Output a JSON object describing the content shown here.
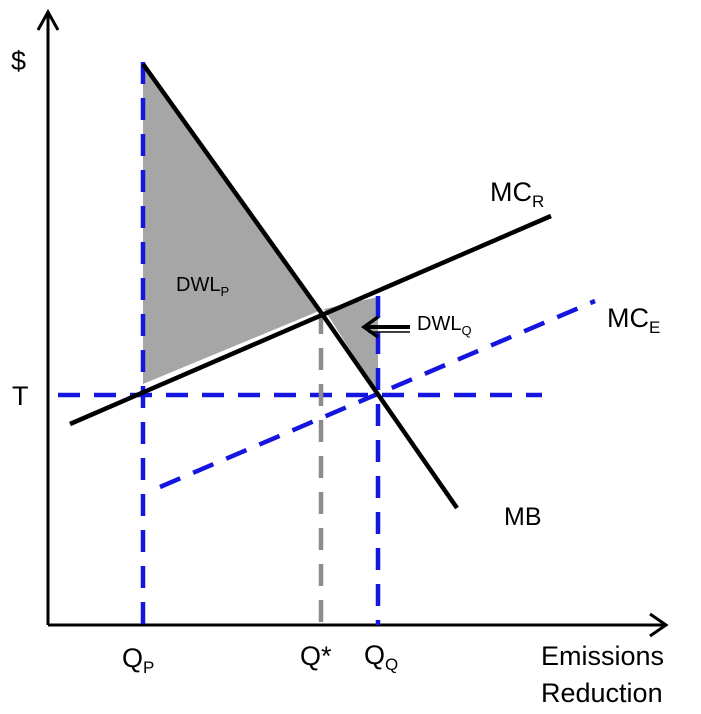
{
  "axes": {
    "y_label": "$",
    "x_label_line1": "Emissions",
    "x_label_line2": "Reduction"
  },
  "labels": {
    "tax": "T",
    "q_p_main": "Q",
    "q_p_sub": "P",
    "q_star": "Q*",
    "q_q_main": "Q",
    "q_q_sub": "Q",
    "mc_r_main": "MC",
    "mc_r_sub": "R",
    "mc_e_main": "MC",
    "mc_e_sub": "E",
    "mb": "MB",
    "dwl_p_main": "DWL",
    "dwl_p_sub": "P",
    "dwl_q_main": "DWL",
    "dwl_q_sub": "Q"
  },
  "colors": {
    "policy_lines": "#1515e0",
    "optimum_line": "#8c8c8c",
    "deadweight_loss": "#a6a6a6",
    "curves": "#000000"
  }
}
